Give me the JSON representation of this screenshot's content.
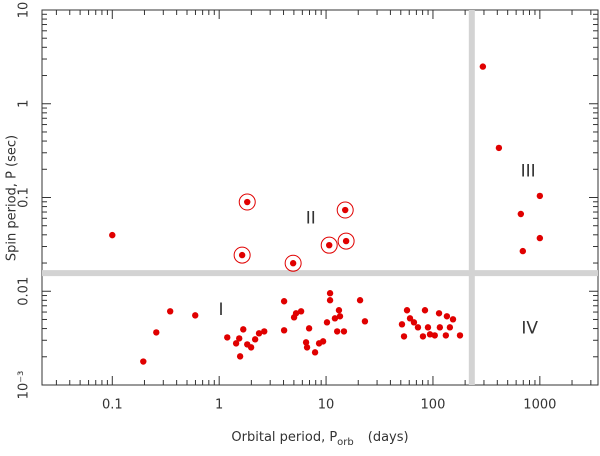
{
  "chart_data": {
    "type": "scatter",
    "xlabel": [
      "Orbital period, P",
      "orb",
      "(days)"
    ],
    "ylabel": "Spin period, P  (sec)",
    "xlog": true,
    "ylog": true,
    "xlim": [
      0.022,
      3500
    ],
    "ylim": [
      0.001,
      10
    ],
    "xticks": [
      0.1,
      1,
      10,
      100,
      1000
    ],
    "yticks": [
      {
        "value": 0.001,
        "label": "10⁻³"
      },
      0.01,
      0.1,
      1,
      10
    ],
    "vlines": [
      231
    ],
    "hlines": [
      0.0156
    ],
    "line_color": "#d3d3d3",
    "series": [
      {
        "color": "#e00000",
        "x": [
          0.1,
          293,
          414,
          664,
          1000,
          693,
          1000,
          0.195,
          0.258,
          0.348,
          0.597,
          1.19,
          1.44,
          1.54,
          1.57,
          1.68,
          1.83,
          1.99,
          2.17,
          2.36,
          2.64,
          4.05,
          4.05,
          5.02,
          5.24,
          5.84,
          6.5,
          6.64,
          6.94,
          7.89,
          8.6,
          9.38,
          10.2,
          10.9,
          10.9,
          12.1,
          12.7,
          13.2,
          13.5,
          14.7,
          20.8,
          23.1,
          51.3,
          53.6,
          57.2,
          61,
          66.4,
          72.4,
          80.6,
          84.2,
          89.8,
          93.8,
          104,
          114,
          116,
          132,
          135,
          144,
          154,
          179
        ],
        "y": [
          0.0397,
          2.49,
          0.338,
          0.0667,
          0.104,
          0.0268,
          0.0369,
          0.00178,
          0.00364,
          0.00611,
          0.00553,
          0.00322,
          0.00278,
          0.00314,
          0.00202,
          0.00392,
          0.00271,
          0.00252,
          0.00307,
          0.00356,
          0.00373,
          0.00782,
          0.00383,
          0.00527,
          0.00582,
          0.00611,
          0.00285,
          0.00252,
          0.00402,
          0.00223,
          0.00278,
          0.00292,
          0.00466,
          0.00953,
          0.00802,
          0.00514,
          0.00373,
          0.00627,
          0.00541,
          0.00373,
          0.00802,
          0.00478,
          0.00444,
          0.0033,
          0.00627,
          0.00514,
          0.00466,
          0.00412,
          0.0033,
          0.00627,
          0.00412,
          0.00347,
          0.00338,
          0.00582,
          0.00412,
          0.00338,
          0.00541,
          0.00412,
          0.00502,
          0.00338
        ]
      },
      {
        "color": "#e00000",
        "marker": "circled",
        "x": [
          1.83,
          1.64,
          4.92,
          15.1,
          10.7,
          15.4
        ],
        "y": [
          0.0895,
          0.0243,
          0.0199,
          0.0735,
          0.031,
          0.0343
        ]
      }
    ],
    "annotations": [
      {
        "text": "I",
        "x": 1.04,
        "y": 0.0063
      },
      {
        "text": "II",
        "x": 7.2,
        "y": 0.06
      },
      {
        "text": "III",
        "x": 777,
        "y": 0.19
      },
      {
        "text": "IV",
        "x": 803,
        "y": 0.004
      }
    ]
  }
}
